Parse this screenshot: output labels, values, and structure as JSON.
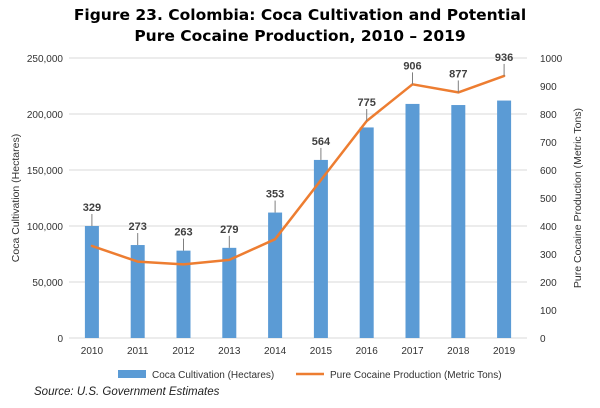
{
  "chart_data": {
    "type": "bar",
    "title_line1": "Figure 23. Colombia: Coca Cultivation and Potential",
    "title_line2": "Pure Cocaine Production, 2010 – 2019",
    "categories": [
      "2010",
      "2011",
      "2012",
      "2013",
      "2014",
      "2015",
      "2016",
      "2017",
      "2018",
      "2019"
    ],
    "series": [
      {
        "name": "Coca Cultivation (Hectares)",
        "type": "bar",
        "axis": "left",
        "color": "#5b9bd5",
        "values": [
          100000,
          83000,
          78000,
          80500,
          112000,
          159000,
          188000,
          209000,
          208000,
          212000
        ]
      },
      {
        "name": "Pure Cocaine Production (Metric Tons)",
        "type": "line",
        "axis": "right",
        "color": "#ed7d31",
        "values": [
          329,
          273,
          263,
          279,
          353,
          564,
          775,
          906,
          877,
          936
        ],
        "labels": [
          "329",
          "273",
          "263",
          "279",
          "353",
          "564",
          "775",
          "906",
          "877",
          "936"
        ]
      }
    ],
    "ylabel": "Coca Cultivation (Hectares)",
    "ylabel_right": "Pure Cocaine Production (Metric Tons)",
    "ylim": [
      0,
      250000
    ],
    "ylim_right": [
      0,
      1000
    ],
    "yticks": [
      "0",
      "50,000",
      "100,000",
      "150,000",
      "200,000",
      "250,000"
    ],
    "yticks_values": [
      0,
      50000,
      100000,
      150000,
      200000,
      250000
    ],
    "yticks_right": [
      "0",
      "100",
      "200",
      "300",
      "400",
      "500",
      "600",
      "700",
      "800",
      "900",
      "1000"
    ],
    "yticks_right_values": [
      0,
      100,
      200,
      300,
      400,
      500,
      600,
      700,
      800,
      900,
      1000
    ],
    "grid": true,
    "legend_position": "bottom"
  },
  "source": "Source: U.S. Government Estimates"
}
